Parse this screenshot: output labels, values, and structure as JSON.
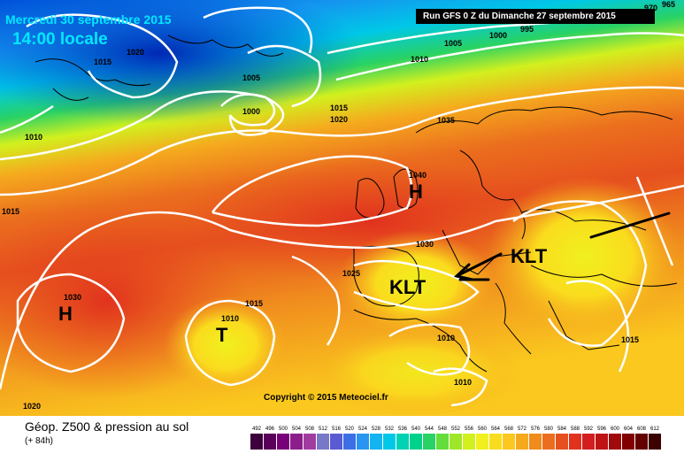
{
  "header": {
    "date": "Mercredi 30 septembre 2015",
    "time": "14:00 locale",
    "run": "Run GFS 0 Z du Dimanche 27 septembre 2015"
  },
  "copyright": "Copyright © 2015 Meteociel.fr",
  "footer": {
    "title": "Géop. Z500 & pression au sol",
    "subtitle": "(+ 84h)"
  },
  "isobar_labels": [
    "1020",
    "1015",
    "1005",
    "1000",
    "1015",
    "1020",
    "1010",
    "1010",
    "1005",
    "1000",
    "995",
    "965",
    "970",
    "1035",
    "1040",
    "1030",
    "1030",
    "1025",
    "1015",
    "1010",
    "1010",
    "1010",
    "1015",
    "1020",
    "1015"
  ],
  "pressure_systems": [
    {
      "letter": "H",
      "value": "1040"
    },
    {
      "letter": "H",
      "value": "1030"
    },
    {
      "letter": "T",
      "value": "1010"
    }
  ],
  "annotations": [
    "KLT",
    "KLT"
  ],
  "scale_values": [
    "492",
    "496",
    "500",
    "504",
    "508",
    "512",
    "516",
    "520",
    "524",
    "528",
    "532",
    "536",
    "540",
    "544",
    "548",
    "552",
    "556",
    "560",
    "564",
    "568",
    "572",
    "576",
    "580",
    "584",
    "588",
    "592",
    "596",
    "600",
    "604",
    "608",
    "612"
  ],
  "scale_colors": [
    "#3c003c",
    "#5a005a",
    "#780078",
    "#8c1e8c",
    "#a03ca0",
    "#7878c8",
    "#5a5ad2",
    "#3c6ee6",
    "#2896f0",
    "#14b4f0",
    "#00c8e6",
    "#00d2b4",
    "#00d28c",
    "#28d264",
    "#64dc3c",
    "#a0e628",
    "#d2f01e",
    "#f0f01e",
    "#fadc1e",
    "#fac81e",
    "#f5aa1e",
    "#f08c1e",
    "#eb6e1e",
    "#e6501e",
    "#e1321e",
    "#d21e1e",
    "#be1414",
    "#a00a0a",
    "#820000",
    "#640000",
    "#3c0000"
  ],
  "colors": {
    "header_text": "#00e8ff",
    "isobar": "#ffffff",
    "coast": "#000000",
    "arrow": "#000000"
  }
}
